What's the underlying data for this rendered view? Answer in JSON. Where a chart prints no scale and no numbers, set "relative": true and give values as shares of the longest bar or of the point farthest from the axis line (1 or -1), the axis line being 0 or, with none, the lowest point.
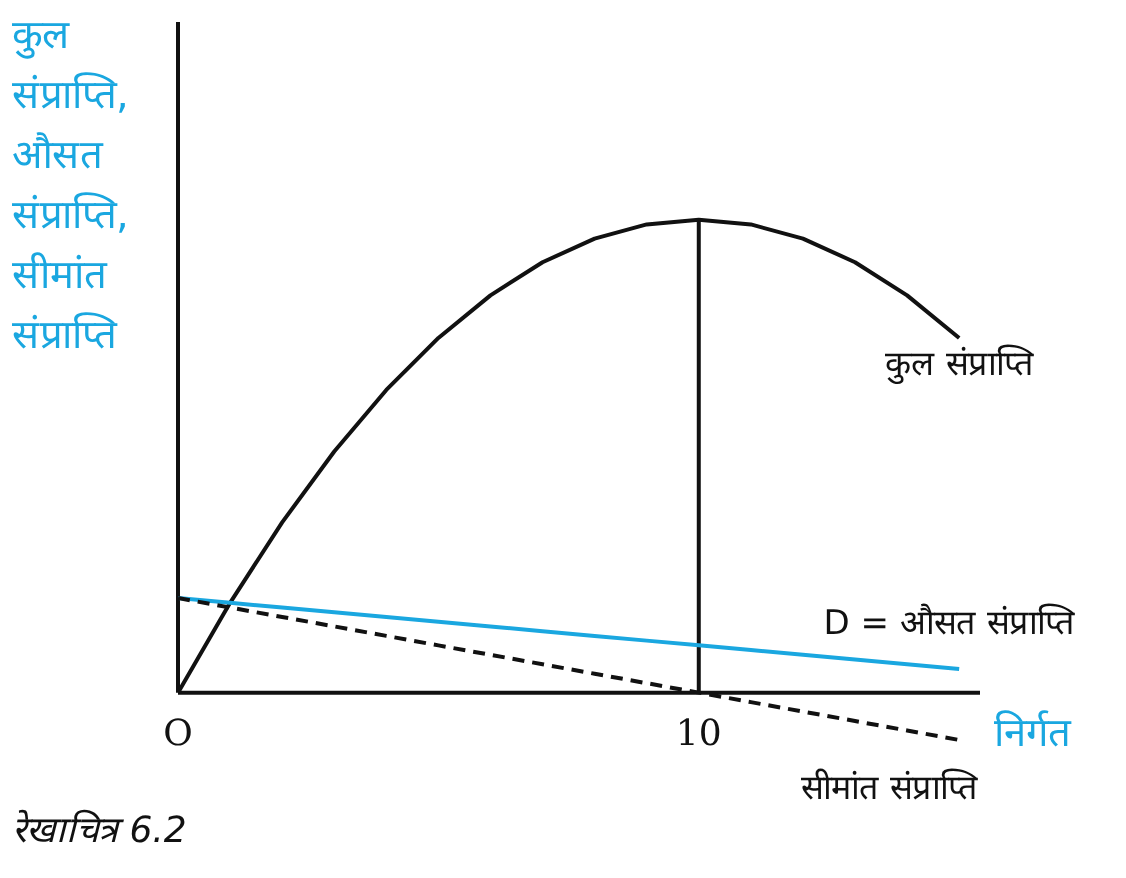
{
  "chart_data": {
    "type": "line",
    "relative": true,
    "ylabel": "कुल संप्राप्ति, औसत संप्राप्ति, सीमांत संप्राप्ति",
    "xlabel": "निर्गत",
    "annotations": [
      "रेखाचित्र 6.2"
    ],
    "grid": false,
    "legend": false,
    "marker": "none",
    "categories": [
      "O",
      null,
      null,
      null,
      null,
      null,
      null,
      null,
      null,
      null,
      "10",
      null,
      null,
      null,
      null,
      null
    ],
    "ref_lines": [
      {
        "axis": "x",
        "value": "10",
        "color": "#111111"
      }
    ],
    "series": [
      {
        "name": "कुल संप्राप्ति",
        "color": "#111111",
        "values": [
          0,
          0.19,
          0.36,
          0.51,
          0.64,
          0.75,
          0.84,
          0.91,
          0.96,
          0.99,
          1,
          0.99,
          0.96,
          0.91,
          0.84,
          0.75
        ]
      },
      {
        "name": "D = औसत संप्राप्ति",
        "color": "#1aa7e0",
        "values": [
          0.2,
          0.19,
          0.18,
          0.17,
          0.16,
          0.15,
          0.14,
          0.13,
          0.12,
          0.11,
          0.1,
          0.09,
          0.08,
          0.07,
          0.06,
          0.05
        ]
      },
      {
        "name": "सीमांत संप्राप्ति",
        "color": "#111111",
        "line_style": "dashed",
        "values": [
          0.2,
          0.18,
          0.16,
          0.14,
          0.12,
          0.1,
          0.08,
          0.06,
          0.04,
          0.02,
          0,
          -0.02,
          -0.04,
          -0.06,
          -0.08,
          -0.1
        ]
      }
    ]
  }
}
